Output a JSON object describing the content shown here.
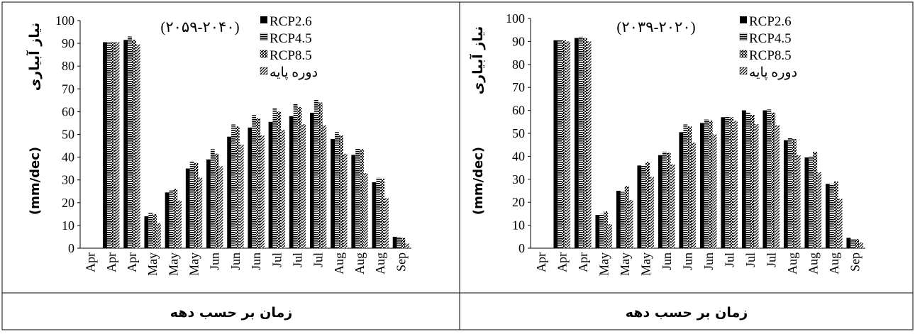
{
  "chart_data": [
    {
      "type": "bar",
      "title": "(۲۰۵۹-۲۰۴۰)",
      "ylabel_rtl": "نیاز آبیاری",
      "ylabel_unit": "(mm/dec)",
      "xlabel": "زمان بر حسب دهه",
      "ylim": [
        0,
        100
      ],
      "yticks": [
        "0",
        "10",
        "20",
        "30",
        "40",
        "50",
        "60",
        "70",
        "80",
        "90",
        "100"
      ],
      "legend_position": "top-right",
      "categories": [
        "Apr",
        "Apr",
        "Apr",
        "May",
        "May",
        "May",
        "Jun",
        "Jun",
        "Jun",
        "Jul",
        "Jul",
        "Jul",
        "Aug",
        "Aug",
        "Aug",
        "Sep"
      ],
      "series": [
        {
          "name": "RCP2.6",
          "pattern": "solid",
          "values": [
            0,
            90.5,
            91.5,
            14,
            24.5,
            35,
            39,
            49,
            53,
            55.5,
            58,
            59.5,
            48,
            41,
            29,
            5
          ]
        },
        {
          "name": "RCP4.5",
          "pattern": "hlines",
          "values": [
            0,
            90.5,
            93,
            15.5,
            25.5,
            38,
            43.5,
            54.5,
            58.5,
            61.5,
            63.5,
            65.5,
            51,
            44,
            31,
            5
          ]
        },
        {
          "name": "RCP8.5",
          "pattern": "checker",
          "values": [
            0,
            90.5,
            91.5,
            15,
            26,
            37.5,
            41.5,
            53.5,
            57,
            60,
            62,
            64,
            49.5,
            43.5,
            30.5,
            4.5
          ]
        },
        {
          "name": "دوره پایه",
          "pattern": "diag",
          "values": [
            0,
            90.5,
            89.5,
            11,
            21,
            31,
            36,
            45.5,
            49.5,
            52,
            54.5,
            54,
            41.5,
            33,
            22,
            2
          ]
        }
      ]
    },
    {
      "type": "bar",
      "title": "(۲۰۳۹-۲۰۲۰)",
      "ylabel_rtl": "نیاز آبیاری",
      "ylabel_unit": "(mm/dec)",
      "xlabel": "زمان بر حسب دهه",
      "ylim": [
        0,
        100
      ],
      "yticks": [
        "0",
        "10",
        "20",
        "30",
        "40",
        "50",
        "60",
        "70",
        "80",
        "90",
        "100"
      ],
      "legend_position": "top-right",
      "categories": [
        "Apr",
        "Apr",
        "Apr",
        "May",
        "May",
        "May",
        "Jun",
        "Jun",
        "Jun",
        "Jul",
        "Jul",
        "Jul",
        "Aug",
        "Aug",
        "Aug",
        "Sep"
      ],
      "series": [
        {
          "name": "RCP2.6",
          "pattern": "solid",
          "values": [
            0,
            90.5,
            91.5,
            14.5,
            25,
            36,
            40.5,
            50.5,
            54.5,
            57,
            60,
            60,
            47,
            39.5,
            28,
            4.5
          ]
        },
        {
          "name": "RCP4.5",
          "pattern": "hlines",
          "values": [
            0,
            90.5,
            92,
            15,
            24.5,
            36,
            42,
            54,
            56,
            57.5,
            59,
            60.5,
            48,
            40,
            28,
            4
          ]
        },
        {
          "name": "RCP8.5",
          "pattern": "checker",
          "values": [
            0,
            90.5,
            91.5,
            16,
            27,
            37.5,
            41.5,
            53,
            55.5,
            57,
            58,
            59,
            47.5,
            42,
            29,
            4
          ]
        },
        {
          "name": "دوره پایه",
          "pattern": "diag",
          "values": [
            0,
            90,
            90,
            10.5,
            21,
            31,
            36.5,
            46,
            49.5,
            55.5,
            54,
            53.5,
            40.5,
            33,
            21.5,
            2.5
          ]
        }
      ]
    }
  ]
}
